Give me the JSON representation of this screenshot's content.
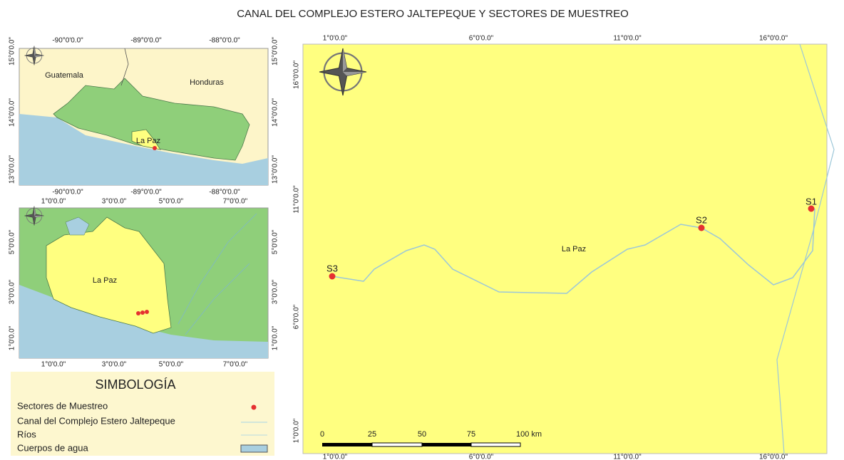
{
  "title": "CANAL DEL COMPLEJO ESTERO JALTEPEQUE Y SECTORES DE MUESTREO",
  "inset_country": {
    "x_labels": [
      "-90°0'0.0\"",
      "-89°0'0.0\"",
      "-88°0'0.0\""
    ],
    "y_labels": [
      "15°0'0.0\"",
      "14°0'0.0\"",
      "13°0'0.0\""
    ],
    "places": [
      "Guatemala",
      "Honduras",
      "La Paz"
    ]
  },
  "inset_department": {
    "x_labels": [
      "1°0'0.0\"",
      "3°0'0.0\"",
      "5°0'0.0\"",
      "7°0'0.0\""
    ],
    "y_labels": [
      "5°0'0.0\"",
      "3°0'0.0\"",
      "1°0'0.0\""
    ],
    "places": [
      "La Paz"
    ]
  },
  "legend": {
    "title": "SIMBOLOGÍA",
    "items": [
      "Sectores de Muestreo",
      "Canal del Complejo Estero Jaltepeque",
      "Ríos",
      "Cuerpos de agua"
    ]
  },
  "main_map": {
    "x_labels": [
      "1°0'0.0\"",
      "6°0'0.0\"",
      "11°0'0.0\"",
      "16°0'0.0\""
    ],
    "y_labels": [
      "16°0'0.0\"",
      "11°0'0.0\"",
      "6°0'0.0\"",
      "1°0'0.0\""
    ],
    "place": "La Paz",
    "points": [
      "S1",
      "S2",
      "S3"
    ],
    "scale_bar": [
      "0",
      "25",
      "50",
      "75",
      "100 km"
    ]
  }
}
